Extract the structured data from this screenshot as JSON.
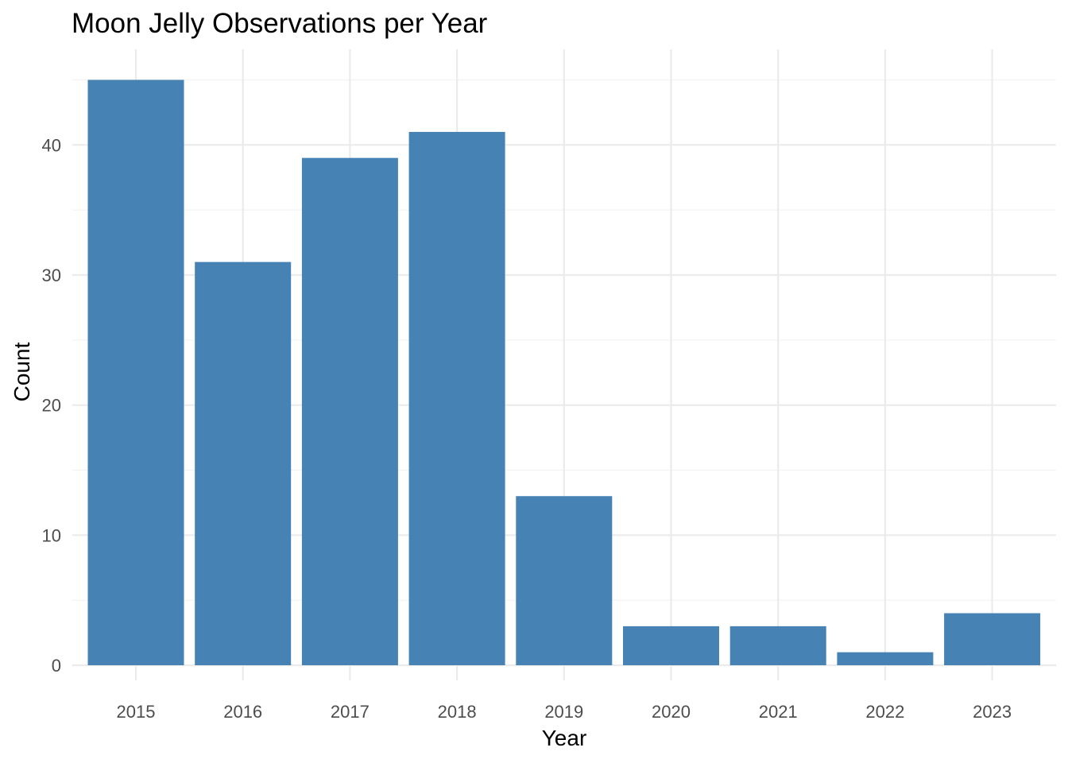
{
  "chart_data": {
    "type": "bar",
    "title": "Moon Jelly Observations per Year",
    "xlabel": "Year",
    "ylabel": "Count",
    "categories": [
      "2015",
      "2016",
      "2017",
      "2018",
      "2019",
      "2020",
      "2021",
      "2022",
      "2023"
    ],
    "values": [
      45,
      31,
      39,
      41,
      13,
      3,
      3,
      1,
      4
    ],
    "ylim": [
      0,
      47
    ],
    "yticks": [
      0,
      10,
      20,
      30,
      40
    ],
    "grid": true,
    "legend": "none",
    "bar_color": "#4682B4"
  }
}
